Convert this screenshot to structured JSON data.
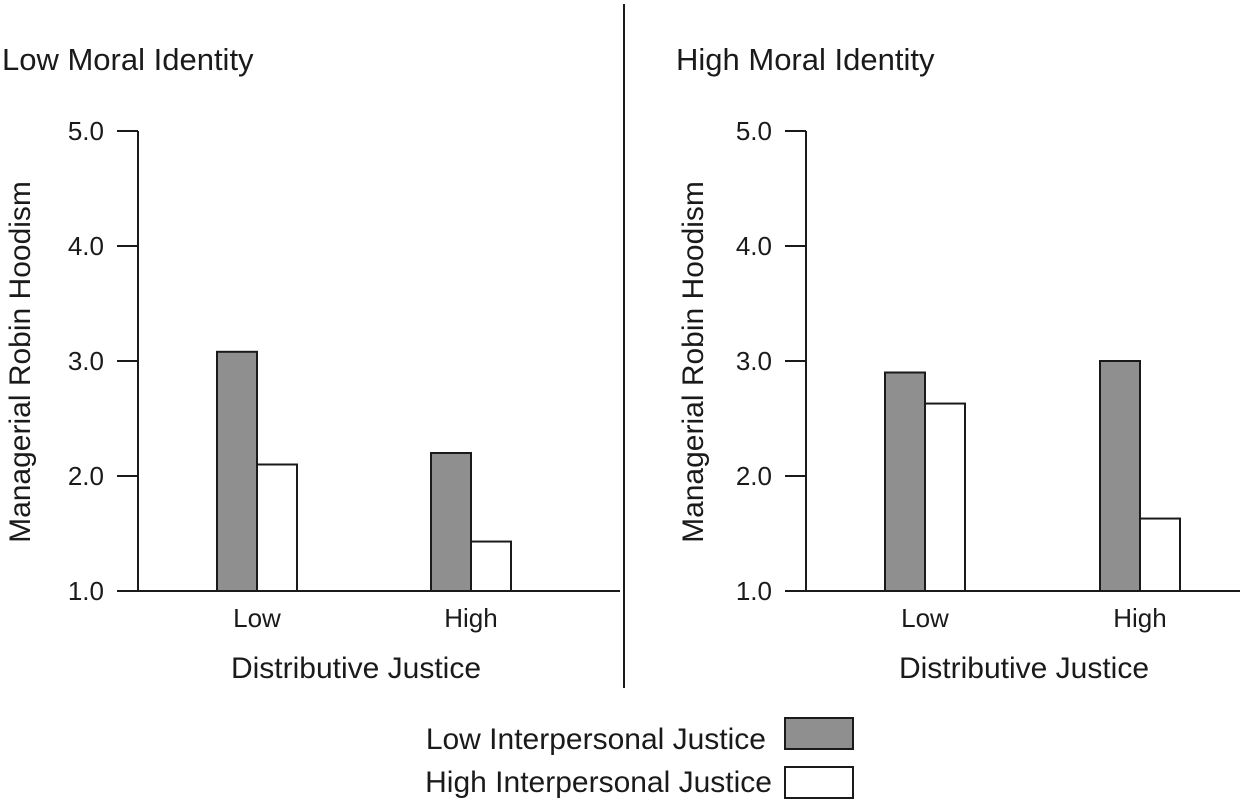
{
  "chart_data": [
    {
      "type": "bar",
      "title": "Low Moral Identity",
      "xlabel": "Distributive Justice",
      "ylabel": "Managerial Robin Hoodism",
      "ylim": [
        1.0,
        5.0
      ],
      "yticks": [
        "1.0",
        "2.0",
        "3.0",
        "4.0",
        "5.0"
      ],
      "categories": [
        "Low",
        "High"
      ],
      "series": [
        {
          "name": "Low Interpersonal Justice",
          "values": [
            3.08,
            2.2
          ]
        },
        {
          "name": "High Interpersonal Justice",
          "values": [
            2.1,
            1.43
          ]
        }
      ]
    },
    {
      "type": "bar",
      "title": "High Moral Identity",
      "xlabel": "Distributive Justice",
      "ylabel": "Managerial Robin Hoodism",
      "ylim": [
        1.0,
        5.0
      ],
      "yticks": [
        "1.0",
        "2.0",
        "3.0",
        "4.0",
        "5.0"
      ],
      "categories": [
        "Low",
        "High"
      ],
      "series": [
        {
          "name": "Low Interpersonal Justice",
          "values": [
            2.9,
            3.0
          ]
        },
        {
          "name": "High Interpersonal Justice",
          "values": [
            2.63,
            1.63
          ]
        }
      ]
    }
  ],
  "legend": [
    {
      "label": "Low Interpersonal Justice",
      "color": "#8f8f8f"
    },
    {
      "label": "High Interpersonal Justice",
      "color": "#ffffff"
    }
  ],
  "colors": {
    "low_series": "#8f8f8f",
    "high_series": "#ffffff",
    "stroke": "#1a1a1a"
  }
}
